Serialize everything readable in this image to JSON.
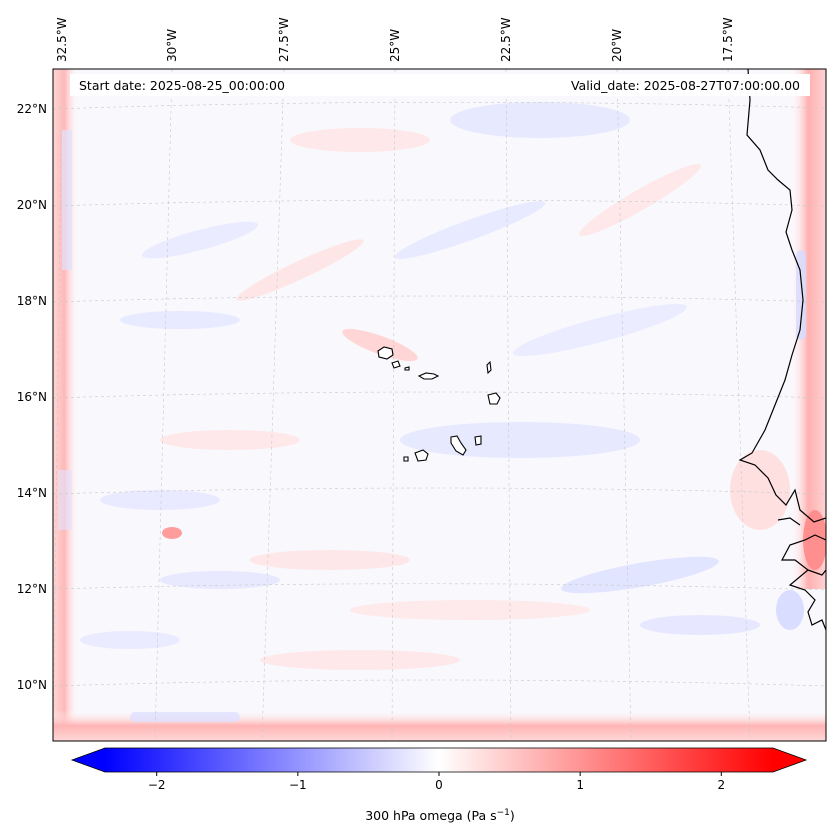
{
  "map": {
    "start_date_label": "Start date: 2025-08-25_00:00:00",
    "valid_date_label": "Valid_date: 2025-08-27T07:00:00.00",
    "longitude_labels": [
      "32.5°W",
      "30°W",
      "27.5°W",
      "25°W",
      "22.5°W",
      "20°W",
      "17.5°W"
    ],
    "latitude_labels": [
      "22°N",
      "20°N",
      "18°N",
      "16°N",
      "14°N",
      "12°N",
      "10°N"
    ],
    "region": "Cabo Verde / West African coast",
    "field": "300 hPa omega"
  },
  "colorbar": {
    "ticks": [
      "−2",
      "−1",
      "0",
      "1",
      "2"
    ],
    "tick_values": [
      -2,
      -1,
      0,
      1,
      2
    ],
    "range": [
      -2.6,
      2.6
    ],
    "label_main": "300 hPa omega (Pa s",
    "label_sup": "−1",
    "label_end": ")",
    "colormap": "bwr",
    "color_min": "#0000ff",
    "color_mid": "#ffffff",
    "color_max": "#ff0000"
  }
}
